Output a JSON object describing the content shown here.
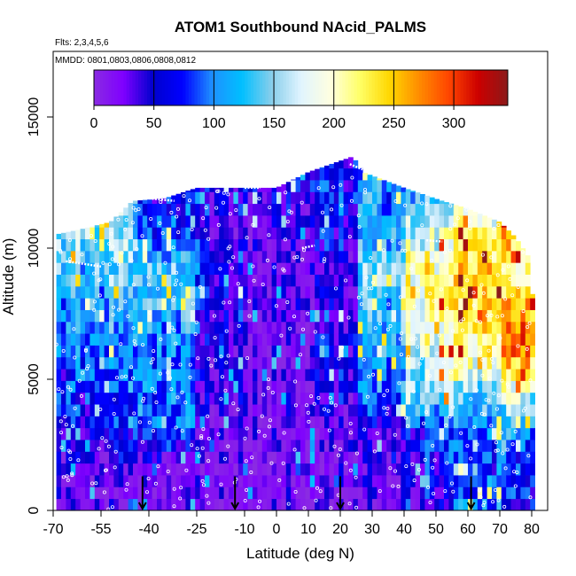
{
  "chart_data": {
    "type": "heatmap",
    "title": "ATOM1 Southbound NAcid_PALMS",
    "flights_note": "Flts: 2,3,4,5,6",
    "dates_note": "MMDD: 0801,0803,0806,0808,0812",
    "xlabel": "Latitude (deg N)",
    "ylabel": "Altitude (m)",
    "xlim": [
      -70,
      85
    ],
    "ylim": [
      0,
      17500
    ],
    "x_ticks": [
      -70,
      -55,
      -40,
      -25,
      -10,
      0,
      10,
      20,
      30,
      40,
      50,
      60,
      70,
      80
    ],
    "x_tick_labels": [
      "-70",
      "-55",
      "-40",
      "-25",
      "-10",
      "0",
      "10",
      "20",
      "30",
      "40",
      "50",
      "60",
      "70",
      "80"
    ],
    "y_ticks": [
      0,
      5000,
      10000,
      15000
    ],
    "y_tick_labels": [
      "0",
      "5000",
      "10000",
      "15000"
    ],
    "colorbar": {
      "min": 0,
      "max": 345,
      "ticks": [
        0,
        50,
        100,
        150,
        200,
        250,
        300
      ],
      "tick_labels": [
        "0",
        "50",
        "100",
        "150",
        "200",
        "250",
        "300"
      ],
      "colors": [
        "#8a2be2",
        "#7f00ff",
        "#0000cd",
        "#0000ff",
        "#1e90ff",
        "#00bfff",
        "#87ceeb",
        "#e0f4ff",
        "#ffffe0",
        "#ffff66",
        "#ffd700",
        "#ff8c00",
        "#ff4500",
        "#cc0000",
        "#8b1a1a"
      ]
    },
    "extent_profile": [
      {
        "lat": -70,
        "top": 10500
      },
      {
        "lat": -62,
        "top": 10700
      },
      {
        "lat": -52,
        "top": 11000
      },
      {
        "lat": -45,
        "top": 11800
      },
      {
        "lat": -35,
        "top": 11900
      },
      {
        "lat": -25,
        "top": 12300
      },
      {
        "lat": -10,
        "top": 12300
      },
      {
        "lat": 0,
        "top": 12300
      },
      {
        "lat": 10,
        "top": 12900
      },
      {
        "lat": 24,
        "top": 13500
      },
      {
        "lat": 27,
        "top": 12900
      },
      {
        "lat": 40,
        "top": 12300
      },
      {
        "lat": 52,
        "top": 11800
      },
      {
        "lat": 60,
        "top": 11500
      },
      {
        "lat": 70,
        "top": 11000
      },
      {
        "lat": 75,
        "top": 10400
      },
      {
        "lat": 80,
        "top": 9500
      },
      {
        "lat": 80.5,
        "top": 7000
      },
      {
        "lat": 81,
        "top": 4500
      }
    ],
    "latitude_bands": [
      {
        "lat_min": -69,
        "lat_max": -45,
        "profile": [
          [
            0,
            15
          ],
          [
            1500,
            25
          ],
          [
            3000,
            60
          ],
          [
            4500,
            70
          ],
          [
            6000,
            90
          ],
          [
            7500,
            110
          ],
          [
            9000,
            130
          ],
          [
            10500,
            150
          ]
        ]
      },
      {
        "lat_min": -45,
        "lat_max": -25,
        "profile": [
          [
            0,
            15
          ],
          [
            1500,
            20
          ],
          [
            3000,
            90
          ],
          [
            4500,
            100
          ],
          [
            6000,
            100
          ],
          [
            7500,
            120
          ],
          [
            9000,
            140
          ],
          [
            10500,
            90
          ],
          [
            11900,
            70
          ]
        ]
      },
      {
        "lat_min": -25,
        "lat_max": -10,
        "profile": [
          [
            0,
            15
          ],
          [
            1500,
            20
          ],
          [
            3000,
            25
          ],
          [
            4500,
            40
          ],
          [
            6000,
            45
          ],
          [
            7500,
            60
          ],
          [
            9000,
            70
          ],
          [
            10500,
            50
          ],
          [
            12300,
            60
          ]
        ]
      },
      {
        "lat_min": -10,
        "lat_max": 10,
        "profile": [
          [
            0,
            10
          ],
          [
            1500,
            10
          ],
          [
            3000,
            15
          ],
          [
            4500,
            15
          ],
          [
            6000,
            15
          ],
          [
            7500,
            20
          ],
          [
            9000,
            20
          ],
          [
            10500,
            25
          ],
          [
            12300,
            40
          ]
        ]
      },
      {
        "lat_min": 10,
        "lat_max": 25,
        "profile": [
          [
            0,
            10
          ],
          [
            1500,
            15
          ],
          [
            3000,
            20
          ],
          [
            4500,
            40
          ],
          [
            6000,
            60
          ],
          [
            7500,
            50
          ],
          [
            9000,
            40
          ],
          [
            10500,
            60
          ],
          [
            12900,
            70
          ]
        ]
      },
      {
        "lat_min": 25,
        "lat_max": 40,
        "profile": [
          [
            0,
            20
          ],
          [
            1500,
            30
          ],
          [
            3000,
            40
          ],
          [
            4500,
            100
          ],
          [
            6000,
            120
          ],
          [
            7500,
            130
          ],
          [
            9000,
            150
          ],
          [
            10500,
            120
          ],
          [
            12900,
            100
          ]
        ]
      },
      {
        "lat_min": 40,
        "lat_max": 55,
        "profile": [
          [
            0,
            40
          ],
          [
            1500,
            60
          ],
          [
            3000,
            80
          ],
          [
            4500,
            160
          ],
          [
            6000,
            180
          ],
          [
            7500,
            200
          ],
          [
            9000,
            220
          ],
          [
            10500,
            180
          ],
          [
            12300,
            130
          ]
        ]
      },
      {
        "lat_min": 55,
        "lat_max": 70,
        "profile": [
          [
            0,
            100
          ],
          [
            1500,
            80
          ],
          [
            3000,
            90
          ],
          [
            4500,
            140
          ],
          [
            6000,
            210
          ],
          [
            7500,
            230
          ],
          [
            9000,
            240
          ],
          [
            10500,
            230
          ],
          [
            11800,
            170
          ]
        ]
      },
      {
        "lat_min": 70,
        "lat_max": 81,
        "profile": [
          [
            0,
            60
          ],
          [
            1500,
            70
          ],
          [
            3000,
            90
          ],
          [
            4500,
            180
          ],
          [
            6000,
            270
          ],
          [
            7500,
            260
          ],
          [
            9000,
            200
          ],
          [
            10500,
            240
          ],
          [
            11000,
            290
          ]
        ]
      }
    ],
    "vertical_profile_markers_lat": [
      -42,
      -13,
      20,
      61
    ]
  }
}
